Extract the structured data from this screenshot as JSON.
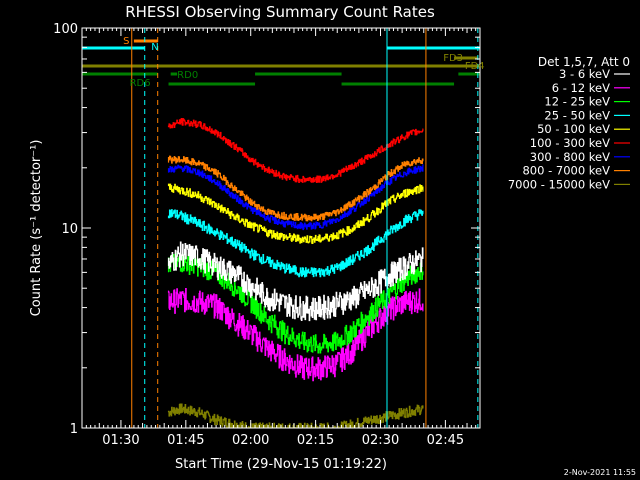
{
  "chart_data": {
    "type": "line",
    "title": "RHESSI Observing Summary Count Rates",
    "xlabel": "Start Time (29-Nov-15 01:19:22)",
    "ylabel": "Count Rate (s⁻¹ detector⁻¹)",
    "yscale": "log",
    "ylim": [
      1,
      100
    ],
    "xlim_minutes": [
      81,
      173
    ],
    "x_ticks": [
      {
        "label": "01:30",
        "min": 90
      },
      {
        "label": "01:45",
        "min": 105
      },
      {
        "label": "02:00",
        "min": 120
      },
      {
        "label": "02:15",
        "min": 135
      },
      {
        "label": "02:30",
        "min": 150
      },
      {
        "label": "02:45",
        "min": 165
      }
    ],
    "y_ticks": [
      {
        "label": "1",
        "v": 1
      },
      {
        "label": "10",
        "v": 10
      },
      {
        "label": "100",
        "v": 100
      }
    ],
    "legend_header": "Det 1,5,7, Att 0",
    "series": [
      {
        "name": "3 - 6 keV",
        "color": "#ffffff",
        "x": [
          101,
          104,
          108,
          112,
          116,
          120,
          124,
          128,
          132,
          136,
          140,
          144,
          148,
          152,
          156,
          160
        ],
        "values": [
          6.5,
          7.5,
          7.2,
          6.5,
          6.0,
          5.2,
          4.5,
          4.2,
          4.0,
          4.0,
          4.2,
          4.5,
          5.0,
          5.8,
          6.5,
          7.0
        ],
        "noise": 0.14
      },
      {
        "name": "6 - 12 keV",
        "color": "#ff00ff",
        "x": [
          101,
          104,
          108,
          112,
          116,
          120,
          124,
          128,
          132,
          136,
          140,
          144,
          148,
          152,
          156,
          160
        ],
        "values": [
          4.3,
          4.4,
          4.3,
          4.1,
          3.5,
          3.0,
          2.5,
          2.2,
          2.0,
          2.0,
          2.1,
          2.5,
          3.2,
          3.9,
          4.3,
          4.4
        ],
        "noise": 0.14
      },
      {
        "name": "12 - 25 keV",
        "color": "#00ff00",
        "x": [
          101,
          104,
          108,
          112,
          116,
          120,
          124,
          128,
          132,
          136,
          140,
          144,
          148,
          152,
          156,
          160
        ],
        "values": [
          6.5,
          6.8,
          6.5,
          6.0,
          5.2,
          4.3,
          3.5,
          3.0,
          2.7,
          2.6,
          2.7,
          3.1,
          3.8,
          4.6,
          5.6,
          6.3
        ],
        "noise": 0.12
      },
      {
        "name": "25 - 50 keV",
        "color": "#00ffff",
        "x": [
          101,
          104,
          108,
          112,
          116,
          120,
          124,
          128,
          132,
          136,
          140,
          144,
          148,
          152,
          156,
          160
        ],
        "values": [
          12.0,
          11.5,
          10.5,
          9.5,
          8.5,
          7.5,
          6.8,
          6.3,
          6.0,
          6.0,
          6.3,
          7.0,
          8.0,
          9.5,
          11.0,
          12.0
        ],
        "noise": 0.06
      },
      {
        "name": "50 - 100 keV",
        "color": "#ffff00",
        "x": [
          101,
          104,
          108,
          112,
          116,
          120,
          124,
          128,
          132,
          136,
          140,
          144,
          148,
          152,
          156,
          160
        ],
        "values": [
          16.0,
          15.5,
          14.5,
          13.0,
          11.5,
          10.3,
          9.5,
          9.0,
          8.8,
          8.8,
          9.2,
          10.0,
          11.5,
          13.5,
          15.0,
          16.0
        ],
        "noise": 0.05
      },
      {
        "name": "100 - 300 keV",
        "color": "#ff0000",
        "x": [
          101,
          104,
          108,
          112,
          116,
          120,
          124,
          128,
          132,
          136,
          140,
          144,
          148,
          152,
          156,
          160
        ],
        "values": [
          32,
          34,
          33,
          30,
          26,
          22,
          19.5,
          18,
          17.5,
          17.5,
          18.5,
          20.5,
          23,
          26,
          29,
          31
        ],
        "noise": 0.04
      },
      {
        "name": "300 - 800 keV",
        "color": "#0000ff",
        "x": [
          101,
          104,
          108,
          112,
          116,
          120,
          124,
          128,
          132,
          136,
          140,
          144,
          148,
          152,
          156,
          160
        ],
        "values": [
          19.5,
          20,
          19,
          17,
          14.5,
          12.5,
          11.2,
          10.5,
          10.2,
          10.3,
          11,
          12.5,
          14.5,
          17,
          19,
          20
        ],
        "noise": 0.04
      },
      {
        "name": "800 - 7000 keV",
        "color": "#ff8000",
        "x": [
          101,
          104,
          108,
          112,
          116,
          120,
          124,
          128,
          132,
          136,
          140,
          144,
          148,
          152,
          156,
          160
        ],
        "values": [
          22,
          22,
          21,
          19,
          16,
          13.5,
          12,
          11.5,
          11.3,
          11.3,
          12,
          13.5,
          15.5,
          18.5,
          21,
          22
        ],
        "noise": 0.04
      },
      {
        "name": "7000 - 15000 keV",
        "color": "#808000",
        "x": [
          101,
          104,
          108,
          112,
          116,
          120,
          124,
          128,
          132,
          136,
          140,
          144,
          148,
          152,
          156,
          160
        ],
        "values": [
          1.2,
          1.25,
          1.2,
          1.1,
          1.05,
          1.0,
          1.0,
          1.0,
          1.0,
          1.0,
          1.0,
          1.05,
          1.1,
          1.15,
          1.2,
          1.25
        ],
        "noise": 0.06
      }
    ],
    "annotations": [
      {
        "label": "S",
        "color": "#ff8000"
      },
      {
        "label": "N",
        "color": "#00ffff"
      },
      {
        "label": "RD0",
        "color": "#008000"
      },
      {
        "label": "RD6",
        "color": "#008000"
      },
      {
        "label": "FD3",
        "color": "#808000"
      },
      {
        "label": "FD4",
        "color": "#808000"
      }
    ],
    "timestamp": "2-Nov-2021 11:55"
  }
}
